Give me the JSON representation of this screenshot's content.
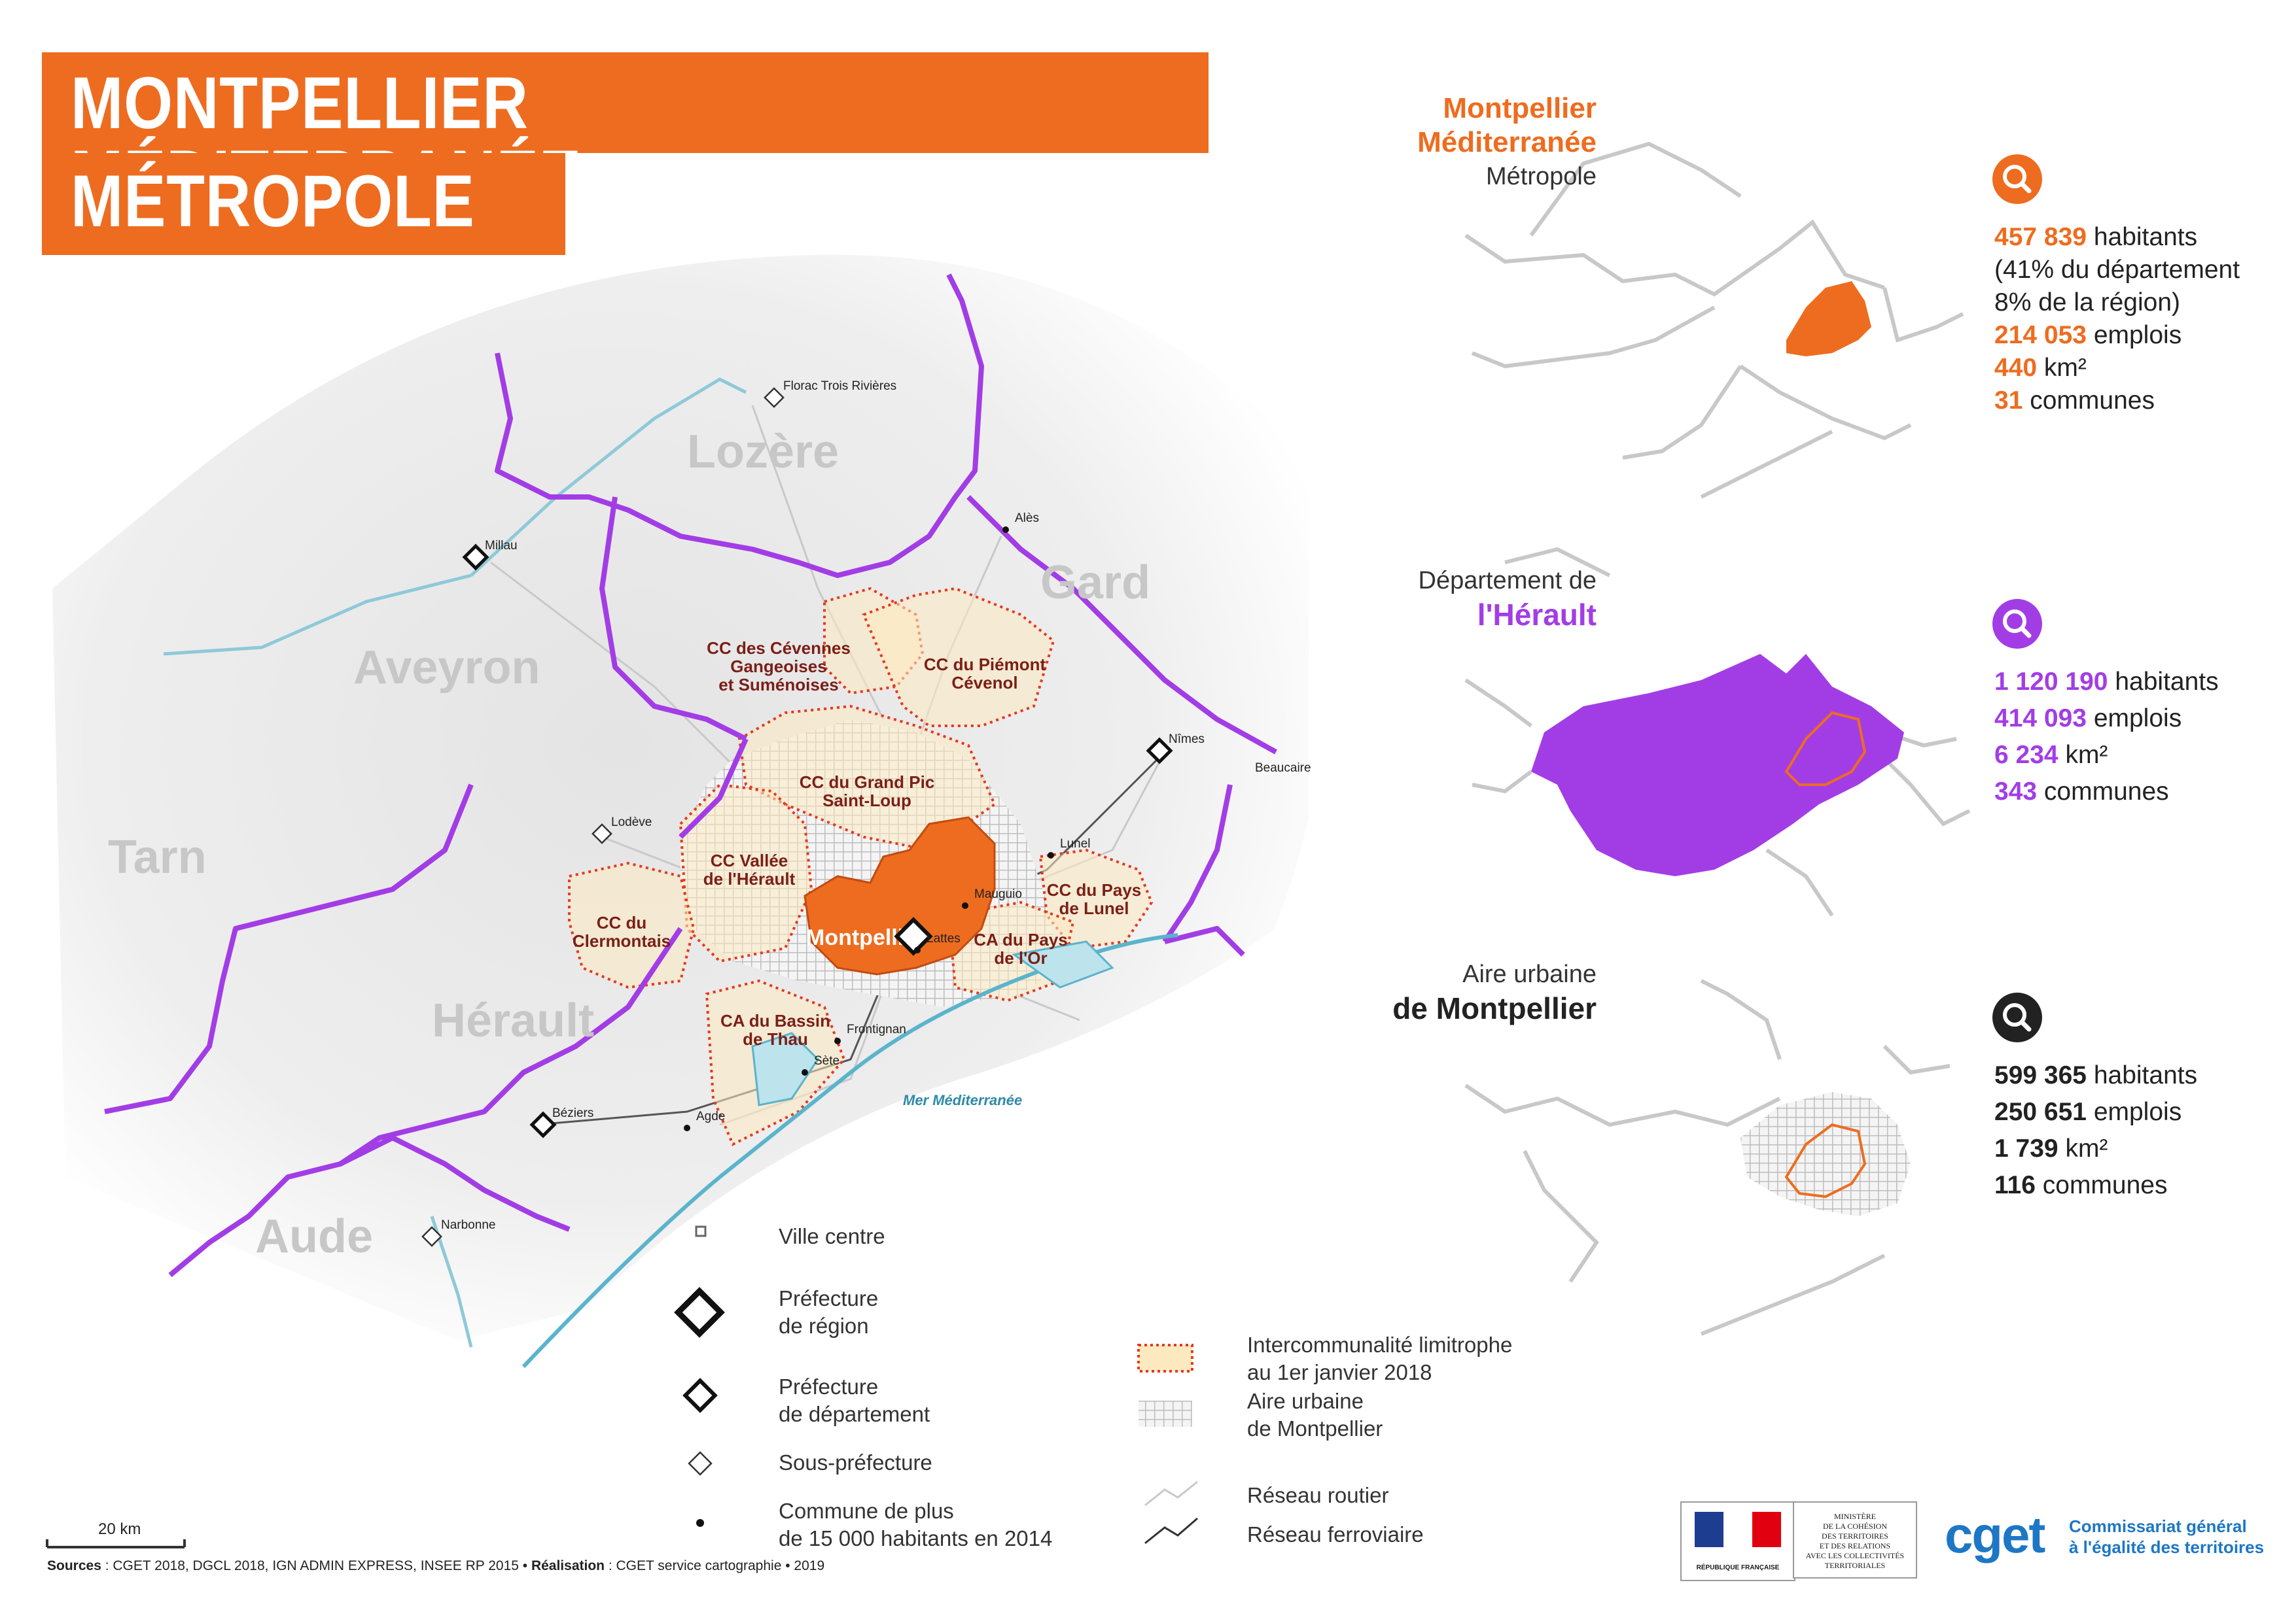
{
  "title": {
    "line1": "MONTPELLIER MÉDITERRANÉE",
    "line2": "MÉTROPOLE"
  },
  "colors": {
    "orange": "#ee6c1f",
    "violet": "#a23de6",
    "dark": "#222222",
    "cc_label": "#7b1f17",
    "sea": "#5ab4cc"
  },
  "map": {
    "regions": [
      "Lozère",
      "Gard",
      "Aveyron",
      "Tarn",
      "Hérault",
      "Aude"
    ],
    "intercommunalities": [
      {
        "name": "CC des Cévennes\nGangeoises\net Suménoises"
      },
      {
        "name": "CC du Piémont\nCévenol"
      },
      {
        "name": "CC du Grand Pic\nSaint-Loup"
      },
      {
        "name": "CC Vallée\nde l'Hérault"
      },
      {
        "name": "CC du\nClermontais"
      },
      {
        "name": "CC du Pays\nde Lunel"
      },
      {
        "name": "CA du Pays\nde l'Or"
      },
      {
        "name": "CA du Bassin\nde Thau"
      }
    ],
    "city_center": "Montpellier",
    "towns": [
      "Florac Trois Rivières",
      "Millau",
      "Alès",
      "Nîmes",
      "Beaucaire",
      "Lodève",
      "Lunel",
      "Mauguio",
      "Lattes",
      "Frontignan",
      "Sète",
      "Agde",
      "Béziers",
      "Narbonne"
    ],
    "sea_label": "Mer Méditerranée",
    "scale_label": "20 km"
  },
  "legend": {
    "ville_centre": "Ville centre",
    "prefecture_region": "Préfecture\nde région",
    "prefecture_departement": "Préfecture\nde département",
    "sous_prefecture": "Sous-préfecture",
    "commune": "Commune de plus\nde 15 000 habitants en 2014",
    "intercommunalite": "Intercommunalité limitrophe\nau 1er janvier 2018",
    "aire_urbaine": "Aire urbaine\nde Montpellier",
    "reseau_routier": "Réseau routier",
    "reseau_ferroviaire": "Réseau ferroviaire"
  },
  "panels": [
    {
      "title1": "Montpellier",
      "title2": "Méditerranée",
      "subtitle": "Métropole",
      "icon": "magnifier-icon",
      "stats": [
        {
          "value": "457 839",
          "label": " habitants"
        },
        {
          "value": "",
          "label": "(41% du département"
        },
        {
          "value": "",
          "label": "8% de la région)"
        },
        {
          "value": "214 053",
          "label": " emplois"
        },
        {
          "value": "440",
          "label": " km²"
        },
        {
          "value": "31",
          "label": " communes"
        }
      ]
    },
    {
      "title1": "Département de",
      "title2": "l'Hérault",
      "icon": "magnifier-icon",
      "stats": [
        {
          "value": "1 120 190",
          "label": " habitants"
        },
        {
          "value": "414 093",
          "label": " emplois"
        },
        {
          "value": "6 234",
          "label": " km²"
        },
        {
          "value": "343",
          "label": " communes"
        }
      ]
    },
    {
      "title1": "Aire urbaine",
      "title2": "de Montpellier",
      "icon": "magnifier-icon",
      "stats": [
        {
          "value": "599 365",
          "label": " habitants"
        },
        {
          "value": "250 651",
          "label": " emplois"
        },
        {
          "value": "1 739",
          "label": " km²"
        },
        {
          "value": "116",
          "label": " communes"
        }
      ]
    }
  ],
  "logos": {
    "republique": "RÉPUBLIQUE FRANÇAISE",
    "ministere": "MINISTÈRE\nDE LA COHÉSION\nDES TERRITOIRES\nET DES RELATIONS\nAVEC LES COLLECTIVITÉS\nTERRITORIALES",
    "cget": "cget",
    "cget_full": "Commissariat général\nà l'égalité des territoires"
  },
  "footer": {
    "sources_label": "Sources",
    "sources_text": " : CGET 2018, DGCL 2018, IGN ADMIN EXPRESS, INSEE RP 2015 • ",
    "realisation_label": "Réalisation",
    "realisation_text": " : CGET service cartographie • 2019"
  }
}
